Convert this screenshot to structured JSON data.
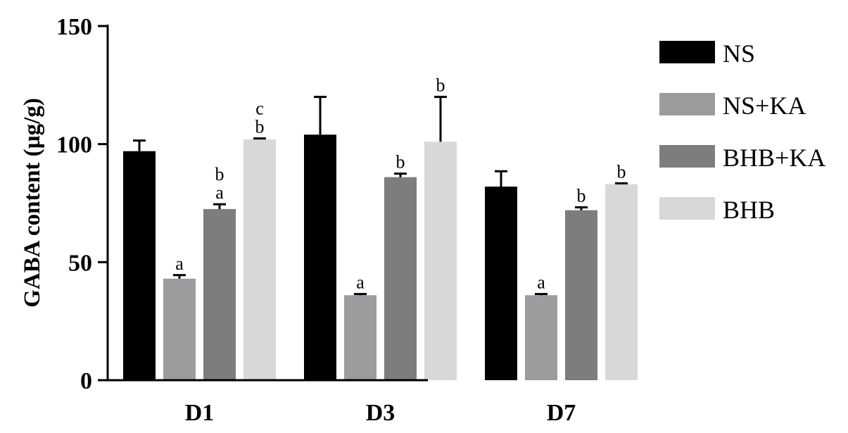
{
  "chart_data": {
    "type": "bar",
    "ylabel": "GABA content (µg/g)",
    "xlabel": "",
    "ylim": [
      0,
      150
    ],
    "yticks": [
      0,
      50,
      100,
      150
    ],
    "categories": [
      "D1",
      "D3",
      "D7"
    ],
    "grid": false,
    "legend_position": "right",
    "series": [
      {
        "name": "NS",
        "color": "#000000",
        "values": [
          97,
          104,
          82
        ],
        "errors": [
          4.5,
          16,
          6.5
        ],
        "sig": [
          "",
          "",
          ""
        ]
      },
      {
        "name": "NS+KA",
        "color": "#9c9c9f",
        "values": [
          43,
          36,
          36
        ],
        "errors": [
          1.5,
          0.5,
          0.5
        ],
        "sig": [
          "a",
          "a",
          "a"
        ]
      },
      {
        "name": "BHB+KA",
        "color": "#7d7d7d",
        "values": [
          72.5,
          86,
          72
        ],
        "errors": [
          2,
          1.5,
          1.2
        ],
        "sig": [
          "b\na",
          "b",
          "b"
        ]
      },
      {
        "name": "BHB",
        "color": "#d8d8d8",
        "values": [
          102,
          101,
          83
        ],
        "errors": [
          0.4,
          19,
          0.4
        ],
        "sig": [
          "c\nb",
          "b",
          "b"
        ]
      }
    ]
  }
}
